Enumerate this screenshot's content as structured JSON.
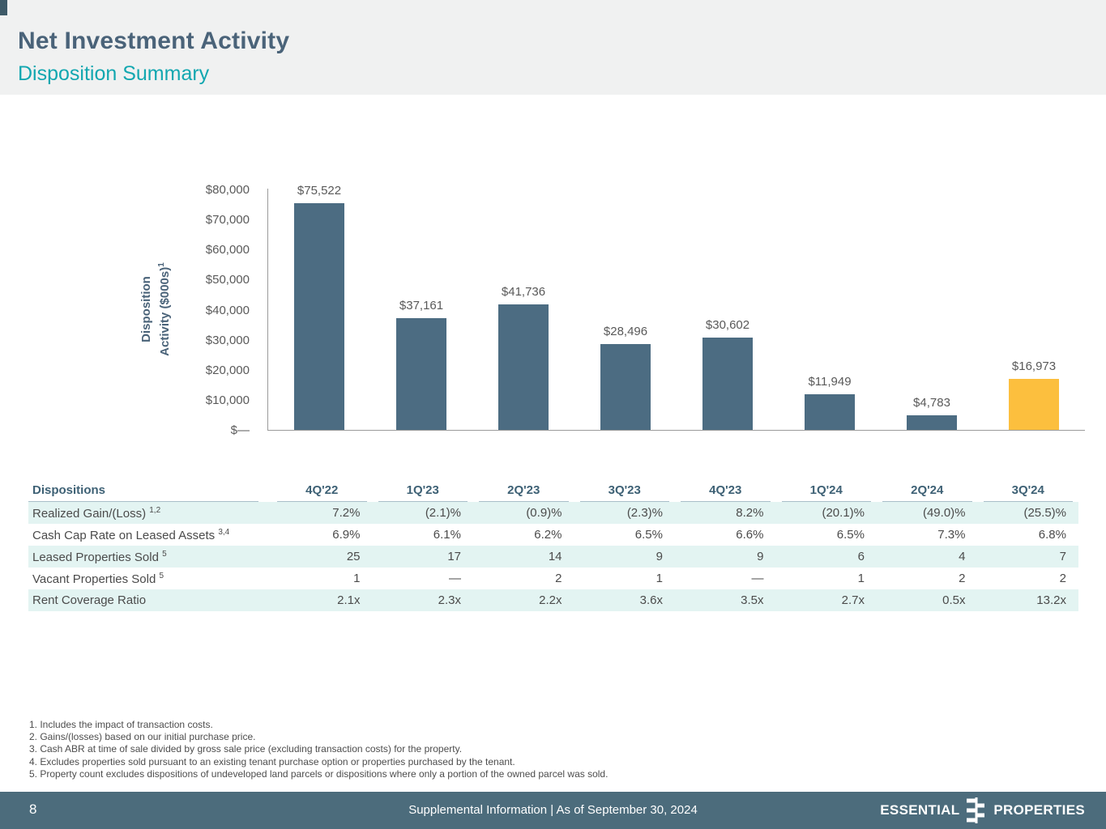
{
  "header": {
    "title": "Net Investment Activity",
    "subtitle": "Disposition Summary"
  },
  "chart_data": {
    "type": "bar",
    "title": "",
    "ylabel_line1": "Disposition",
    "ylabel_line2": "Activity ($000s)",
    "ylabel_sup": "1",
    "categories": [
      "4Q'22",
      "1Q'23",
      "2Q'23",
      "3Q'23",
      "4Q'23",
      "1Q'24",
      "2Q'24",
      "3Q'24"
    ],
    "values": [
      75522,
      37161,
      41736,
      28496,
      30602,
      11949,
      4783,
      16973
    ],
    "labels": [
      "$75,522",
      "$37,161",
      "$41,736",
      "$28,496",
      "$30,602",
      "$11,949",
      "$4,783",
      "$16,973"
    ],
    "ylim": [
      0,
      80000
    ],
    "yticks": [
      "$80,000",
      "$70,000",
      "$60,000",
      "$50,000",
      "$40,000",
      "$30,000",
      "$20,000",
      "$10,000",
      "$—"
    ],
    "grid": false,
    "legend": "none",
    "bar_color": "#4c6c82",
    "highlight_color": "#fcbf3e",
    "highlight_index": 7
  },
  "table": {
    "title": "Dispositions",
    "columns": [
      "4Q'22",
      "1Q'23",
      "2Q'23",
      "3Q'23",
      "4Q'23",
      "1Q'24",
      "2Q'24",
      "3Q'24"
    ],
    "rows": [
      {
        "label": "Realized Gain/(Loss)",
        "superscript": "1,2",
        "values": [
          "7.2%",
          "(2.1)%",
          "(0.9)%",
          "(2.3)%",
          "8.2%",
          "(20.1)%",
          "(49.0)%",
          "(25.5)%"
        ]
      },
      {
        "label": "Cash Cap Rate on Leased Assets",
        "superscript": "3,4",
        "values": [
          "6.9%",
          "6.1%",
          "6.2%",
          "6.5%",
          "6.6%",
          "6.5%",
          "7.3%",
          "6.8%"
        ]
      },
      {
        "label": "Leased Properties Sold",
        "superscript": "5",
        "values": [
          "25",
          "17",
          "14",
          "9",
          "9",
          "6",
          "4",
          "7"
        ]
      },
      {
        "label": "Vacant Properties Sold",
        "superscript": "5",
        "values": [
          "1",
          "—",
          "2",
          "1",
          "—",
          "1",
          "2",
          "2"
        ]
      },
      {
        "label": "Rent Coverage Ratio",
        "superscript": "",
        "values": [
          "2.1x",
          "2.3x",
          "2.2x",
          "3.6x",
          "3.5x",
          "2.7x",
          "0.5x",
          "13.2x"
        ]
      }
    ]
  },
  "footnotes": [
    "1. Includes the impact of transaction costs.",
    "2. Gains/(losses) based on our initial purchase price.",
    "3. Cash ABR at time of sale divided by gross sale price (excluding transaction costs) for the property.",
    "4. Excludes properties sold pursuant to an existing tenant purchase option or properties purchased by the tenant.",
    "5. Property count excludes dispositions of undeveloped land parcels or dispositions where only a portion of the owned parcel was sold."
  ],
  "footer": {
    "page_number": "8",
    "center_text": "Supplemental Information |  As of September 30, 2024",
    "logo_left": "ESSENTIAL",
    "logo_right": "PROPERTIES"
  },
  "colors": {
    "header_band": "#f0f1f1",
    "title_text": "#4a6379",
    "subtitle_accent": "#12a7b0",
    "bar": "#4c6c82",
    "highlight_bar": "#fcbf3e",
    "table_stripe": "#e3f4f2",
    "footer_bg": "#4c6c7c"
  }
}
